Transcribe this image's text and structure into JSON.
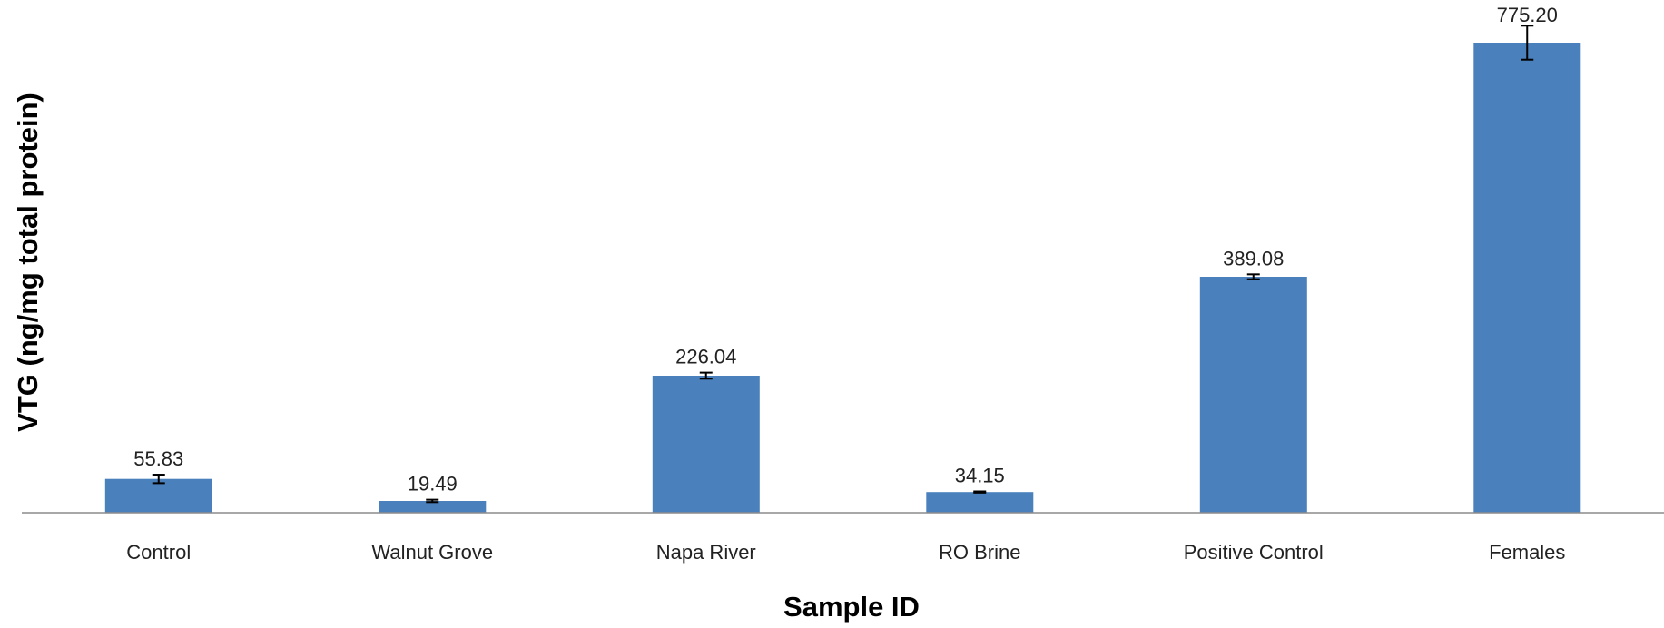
{
  "chart_data": {
    "type": "bar",
    "title": "",
    "xlabel": "Sample ID",
    "ylabel": "VTG (ng/mg total protein)",
    "categories": [
      "Control",
      "Walnut Grove",
      "Napa River",
      "RO Brine",
      "Positive Control",
      "Females"
    ],
    "values": [
      55.83,
      19.49,
      226.04,
      34.15,
      389.08,
      775.2
    ],
    "value_labels": [
      "55.83",
      "19.49",
      "226.04",
      "34.15",
      "389.08",
      "775.20"
    ],
    "error": [
      7,
      2,
      5,
      1,
      4,
      28
    ],
    "ylim": [
      0,
      775.2
    ],
    "grid": false,
    "legend": "none",
    "colors": {
      "bar": "#4a81bd",
      "axis": "#8c8c8c",
      "error_bar": "#000000"
    }
  }
}
